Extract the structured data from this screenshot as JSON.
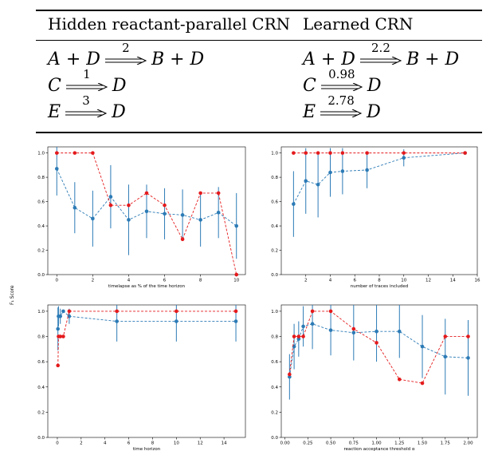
{
  "table": {
    "header_left": "Hidden reactant-parallel CRN",
    "header_right": "Learned CRN",
    "hidden": [
      {
        "lhs": "A + D",
        "rate": "2",
        "rhs": "B + D"
      },
      {
        "lhs": "C",
        "rate": "1",
        "rhs": "D"
      },
      {
        "lhs": "E",
        "rate": "3",
        "rhs": "D"
      }
    ],
    "learned": [
      {
        "lhs": "A + D",
        "rate": "2.2",
        "rhs": "B + D"
      },
      {
        "lhs": "C",
        "rate": "0.98",
        "rhs": "D"
      },
      {
        "lhs": "E",
        "rate": "2.78",
        "rhs": "D"
      }
    ]
  },
  "shared_ylabel": "F₁ Score",
  "colors": {
    "red": "#e41a1c",
    "blue": "#2c7bb6"
  },
  "chart_data": [
    {
      "type": "line",
      "xlabel": "timelapse as % of the time horizon",
      "ylabel": "",
      "xlim": [
        -0.5,
        10.5
      ],
      "ylim": [
        0,
        1.05
      ],
      "xticks": [
        0,
        2,
        4,
        6,
        8,
        10
      ],
      "yticks": [
        0.0,
        0.2,
        0.4,
        0.6,
        0.8,
        1.0
      ],
      "xticklabels": [
        "0",
        "2",
        "4",
        "6",
        "8",
        "10"
      ],
      "yticklabels": [
        "0.0",
        "0.2",
        "0.4",
        "0.6",
        "0.8",
        "1.0"
      ],
      "series": [
        {
          "color": "red",
          "x": [
            0,
            1,
            2,
            3,
            4,
            5,
            6,
            7,
            8,
            9,
            10
          ],
          "y": [
            1.0,
            1.0,
            1.0,
            0.57,
            0.57,
            0.67,
            0.57,
            0.29,
            0.67,
            0.67,
            0.0
          ]
        },
        {
          "color": "blue",
          "x": [
            0,
            1,
            2,
            3,
            4,
            5,
            6,
            7,
            8,
            9,
            10
          ],
          "y": [
            0.87,
            0.55,
            0.46,
            0.64,
            0.45,
            0.52,
            0.5,
            0.49,
            0.45,
            0.51,
            0.4
          ],
          "err": [
            0.22,
            0.21,
            0.23,
            0.26,
            0.29,
            0.22,
            0.21,
            0.21,
            0.22,
            0.21,
            0.27
          ]
        }
      ]
    },
    {
      "type": "line",
      "xlabel": "number of traces included",
      "ylabel": "",
      "xlim": [
        0,
        16
      ],
      "ylim": [
        0,
        1.05
      ],
      "xticks": [
        2,
        4,
        6,
        8,
        10,
        12,
        14,
        16
      ],
      "yticks": [
        0.0,
        0.2,
        0.4,
        0.6,
        0.8,
        1.0
      ],
      "xticklabels": [
        "2",
        "4",
        "6",
        "8",
        "10",
        "12",
        "14",
        "16"
      ],
      "yticklabels": [
        "0.0",
        "0.2",
        "0.4",
        "0.6",
        "0.8",
        "1.0"
      ],
      "series": [
        {
          "color": "red",
          "x": [
            1,
            2,
            3,
            4,
            5,
            7,
            10,
            15
          ],
          "y": [
            1.0,
            1.0,
            1.0,
            1.0,
            1.0,
            1.0,
            1.0,
            1.0
          ]
        },
        {
          "color": "blue",
          "x": [
            1,
            2,
            3,
            4,
            5,
            7,
            10,
            15
          ],
          "y": [
            0.58,
            0.77,
            0.74,
            0.84,
            0.85,
            0.86,
            0.96,
            1.0
          ],
          "err": [
            0.27,
            0.27,
            0.27,
            0.2,
            0.19,
            0.15,
            0.07,
            0.0
          ]
        }
      ]
    },
    {
      "type": "line",
      "xlabel": "time horizon",
      "ylabel": "",
      "xlim": [
        -0.8,
        15.8
      ],
      "ylim": [
        0,
        1.05
      ],
      "xticks": [
        0,
        2,
        4,
        6,
        8,
        10,
        12,
        14
      ],
      "yticks": [
        0.0,
        0.2,
        0.4,
        0.6,
        0.8,
        1.0
      ],
      "xticklabels": [
        "0",
        "2",
        "4",
        "6",
        "8",
        "10",
        "12",
        "14"
      ],
      "yticklabels": [
        "0.0",
        "0.2",
        "0.4",
        "0.6",
        "0.8",
        "1.0"
      ],
      "series": [
        {
          "color": "red",
          "x": [
            0.05,
            0.1,
            0.25,
            0.5,
            1,
            5,
            10,
            15
          ],
          "y": [
            0.57,
            0.8,
            0.8,
            0.8,
            1.0,
            1.0,
            1.0,
            1.0
          ]
        },
        {
          "color": "blue",
          "x": [
            0.05,
            0.1,
            0.25,
            0.5,
            1,
            5,
            10,
            15
          ],
          "y": [
            0.86,
            0.96,
            0.96,
            1.0,
            0.96,
            0.92,
            0.92,
            0.92
          ],
          "err": [
            0.17,
            0.08,
            0.06,
            0.0,
            0.06,
            0.16,
            0.16,
            0.16
          ]
        }
      ]
    },
    {
      "type": "line",
      "xlabel": "reaction acceptance threshold α",
      "ylabel": "",
      "xlim": [
        -0.04,
        2.1
      ],
      "ylim": [
        0,
        1.05
      ],
      "xticks": [
        0.0,
        0.25,
        0.5,
        0.75,
        1.0,
        1.25,
        1.5,
        1.75,
        2.0
      ],
      "yticks": [
        0.0,
        0.2,
        0.4,
        0.6,
        0.8,
        1.0
      ],
      "xticklabels": [
        "0.00",
        "0.25",
        "0.50",
        "0.75",
        "1.00",
        "1.25",
        "1.50",
        "1.75",
        "2.00"
      ],
      "yticklabels": [
        "0.0",
        "0.2",
        "0.4",
        "0.6",
        "0.8",
        "1.0"
      ],
      "series": [
        {
          "color": "red",
          "x": [
            0.05,
            0.1,
            0.15,
            0.2,
            0.3,
            0.5,
            0.75,
            1.0,
            1.25,
            1.5,
            1.75,
            2.0
          ],
          "y": [
            0.5,
            0.8,
            0.8,
            0.8,
            1.0,
            1.0,
            0.86,
            0.75,
            0.46,
            0.43,
            0.8,
            0.8
          ]
        },
        {
          "color": "blue",
          "x": [
            0.05,
            0.1,
            0.15,
            0.2,
            0.3,
            0.5,
            0.75,
            1.0,
            1.25,
            1.5,
            1.75,
            2.0
          ],
          "y": [
            0.48,
            0.72,
            0.78,
            0.88,
            0.9,
            0.85,
            0.83,
            0.84,
            0.84,
            0.72,
            0.64,
            0.63
          ],
          "err": [
            0.18,
            0.18,
            0.14,
            0.16,
            0.2,
            0.2,
            0.22,
            0.24,
            0.21,
            0.25,
            0.3,
            0.3
          ]
        }
      ]
    }
  ]
}
